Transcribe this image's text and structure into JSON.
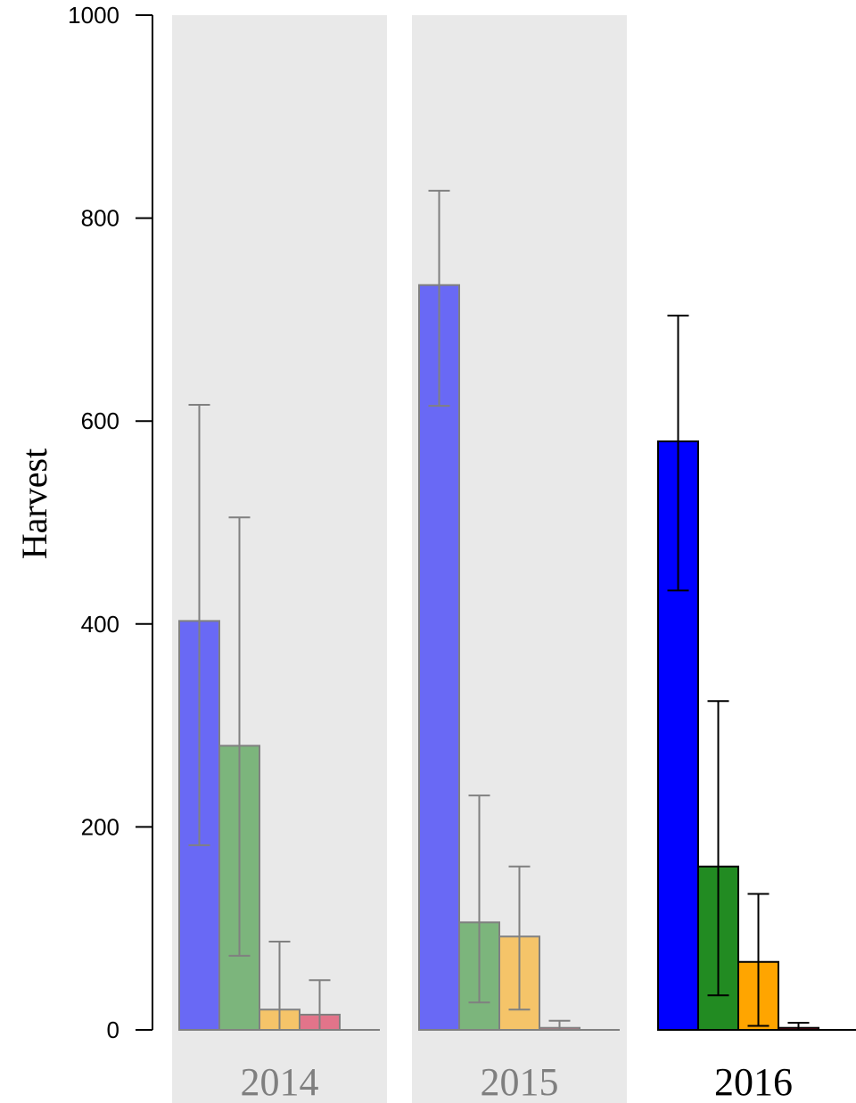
{
  "chart_data": {
    "type": "bar",
    "ylabel": "Harvest",
    "ylim": [
      0,
      1000
    ],
    "yticks": [
      "0",
      "200",
      "400",
      "600",
      "800",
      "1000"
    ],
    "ytick_values": [
      0,
      200,
      400,
      600,
      800,
      1000
    ],
    "colors": [
      "#0000ff",
      "#228b22",
      "#ffa500",
      "#dc143c",
      "#000000"
    ],
    "panels": [
      {
        "label": "2014",
        "faded": true,
        "values": [
          403,
          280,
          20,
          15,
          0
        ],
        "err_low": [
          182,
          73,
          0,
          0,
          null
        ],
        "err_high": [
          616,
          505,
          87,
          49,
          null
        ]
      },
      {
        "label": "2015",
        "faded": true,
        "values": [
          734,
          106,
          92,
          2,
          0
        ],
        "err_low": [
          615,
          27,
          20,
          0,
          null
        ],
        "err_high": [
          827,
          231,
          161,
          9,
          null
        ]
      },
      {
        "label": "2016",
        "faded": false,
        "values": [
          580,
          161,
          67,
          2,
          0
        ],
        "err_low": [
          433,
          34,
          4,
          0,
          null
        ],
        "err_high": [
          704,
          324,
          134,
          7,
          null
        ]
      }
    ]
  }
}
